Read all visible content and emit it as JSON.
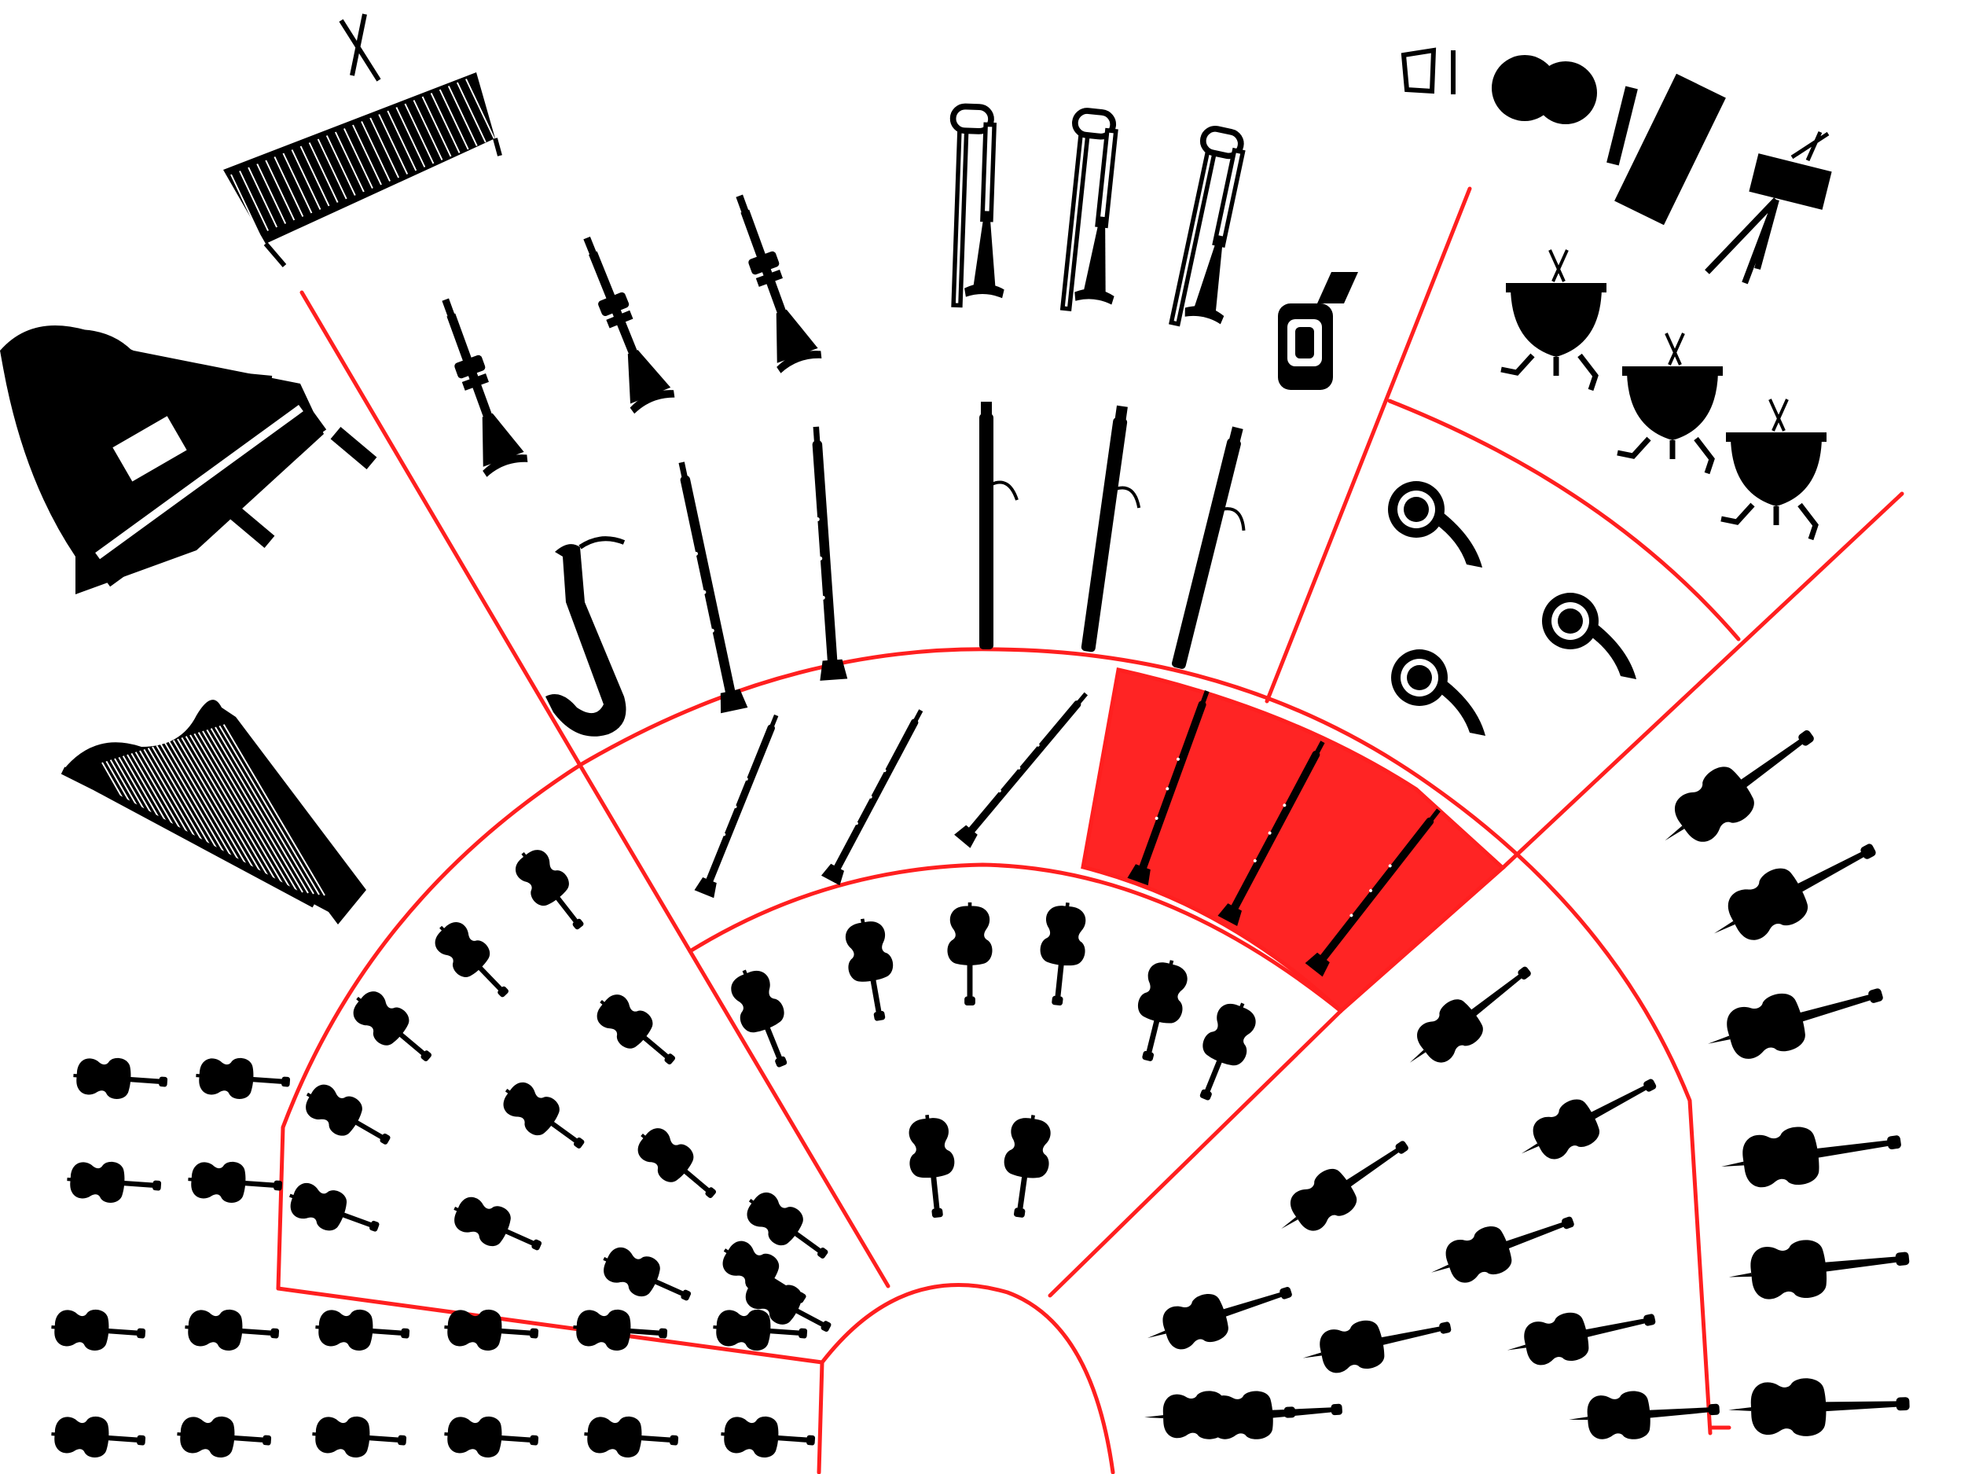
{
  "colors": {
    "section_line": "#ff1f1f",
    "highlight_fill": "#ff2424",
    "instrument": "#000000",
    "background": "#ffffff"
  },
  "highlighted_section": "clarinets",
  "sections": [
    {
      "id": "piano",
      "icon": "grand-piano-icon",
      "count": 1
    },
    {
      "id": "celesta",
      "icon": "celesta-icon",
      "count": 1
    },
    {
      "id": "harp",
      "icon": "harp-icon",
      "count": 1
    },
    {
      "id": "trumpets",
      "icon": "trumpet-icon",
      "count": 3
    },
    {
      "id": "trombones",
      "icon": "trombone-icon",
      "count": 3
    },
    {
      "id": "tuba",
      "icon": "tuba-icon",
      "count": 1
    },
    {
      "id": "saxophone",
      "icon": "saxophone-icon",
      "count": 1
    },
    {
      "id": "oboes",
      "icon": "oboe-icon",
      "count": 2
    },
    {
      "id": "bassoons",
      "icon": "bassoon-icon",
      "count": 3
    },
    {
      "id": "percussion",
      "icon": "percussion-icon",
      "count": 5
    },
    {
      "id": "timpani",
      "icon": "timpani-icon",
      "count": 3
    },
    {
      "id": "french-horns",
      "icon": "french-horn-icon",
      "count": 3
    },
    {
      "id": "flutes",
      "icon": "flute-icon",
      "count": 3
    },
    {
      "id": "clarinets",
      "icon": "clarinet-icon",
      "count": 3
    },
    {
      "id": "violas",
      "icon": "viola-icon",
      "count": 8
    },
    {
      "id": "second-violins",
      "icon": "violin-icon",
      "count": 12
    },
    {
      "id": "first-violins",
      "icon": "violin-icon",
      "count": 24
    },
    {
      "id": "cellos",
      "icon": "cello-icon",
      "count": 10
    },
    {
      "id": "double-basses",
      "icon": "double-bass-icon",
      "count": 6
    }
  ]
}
